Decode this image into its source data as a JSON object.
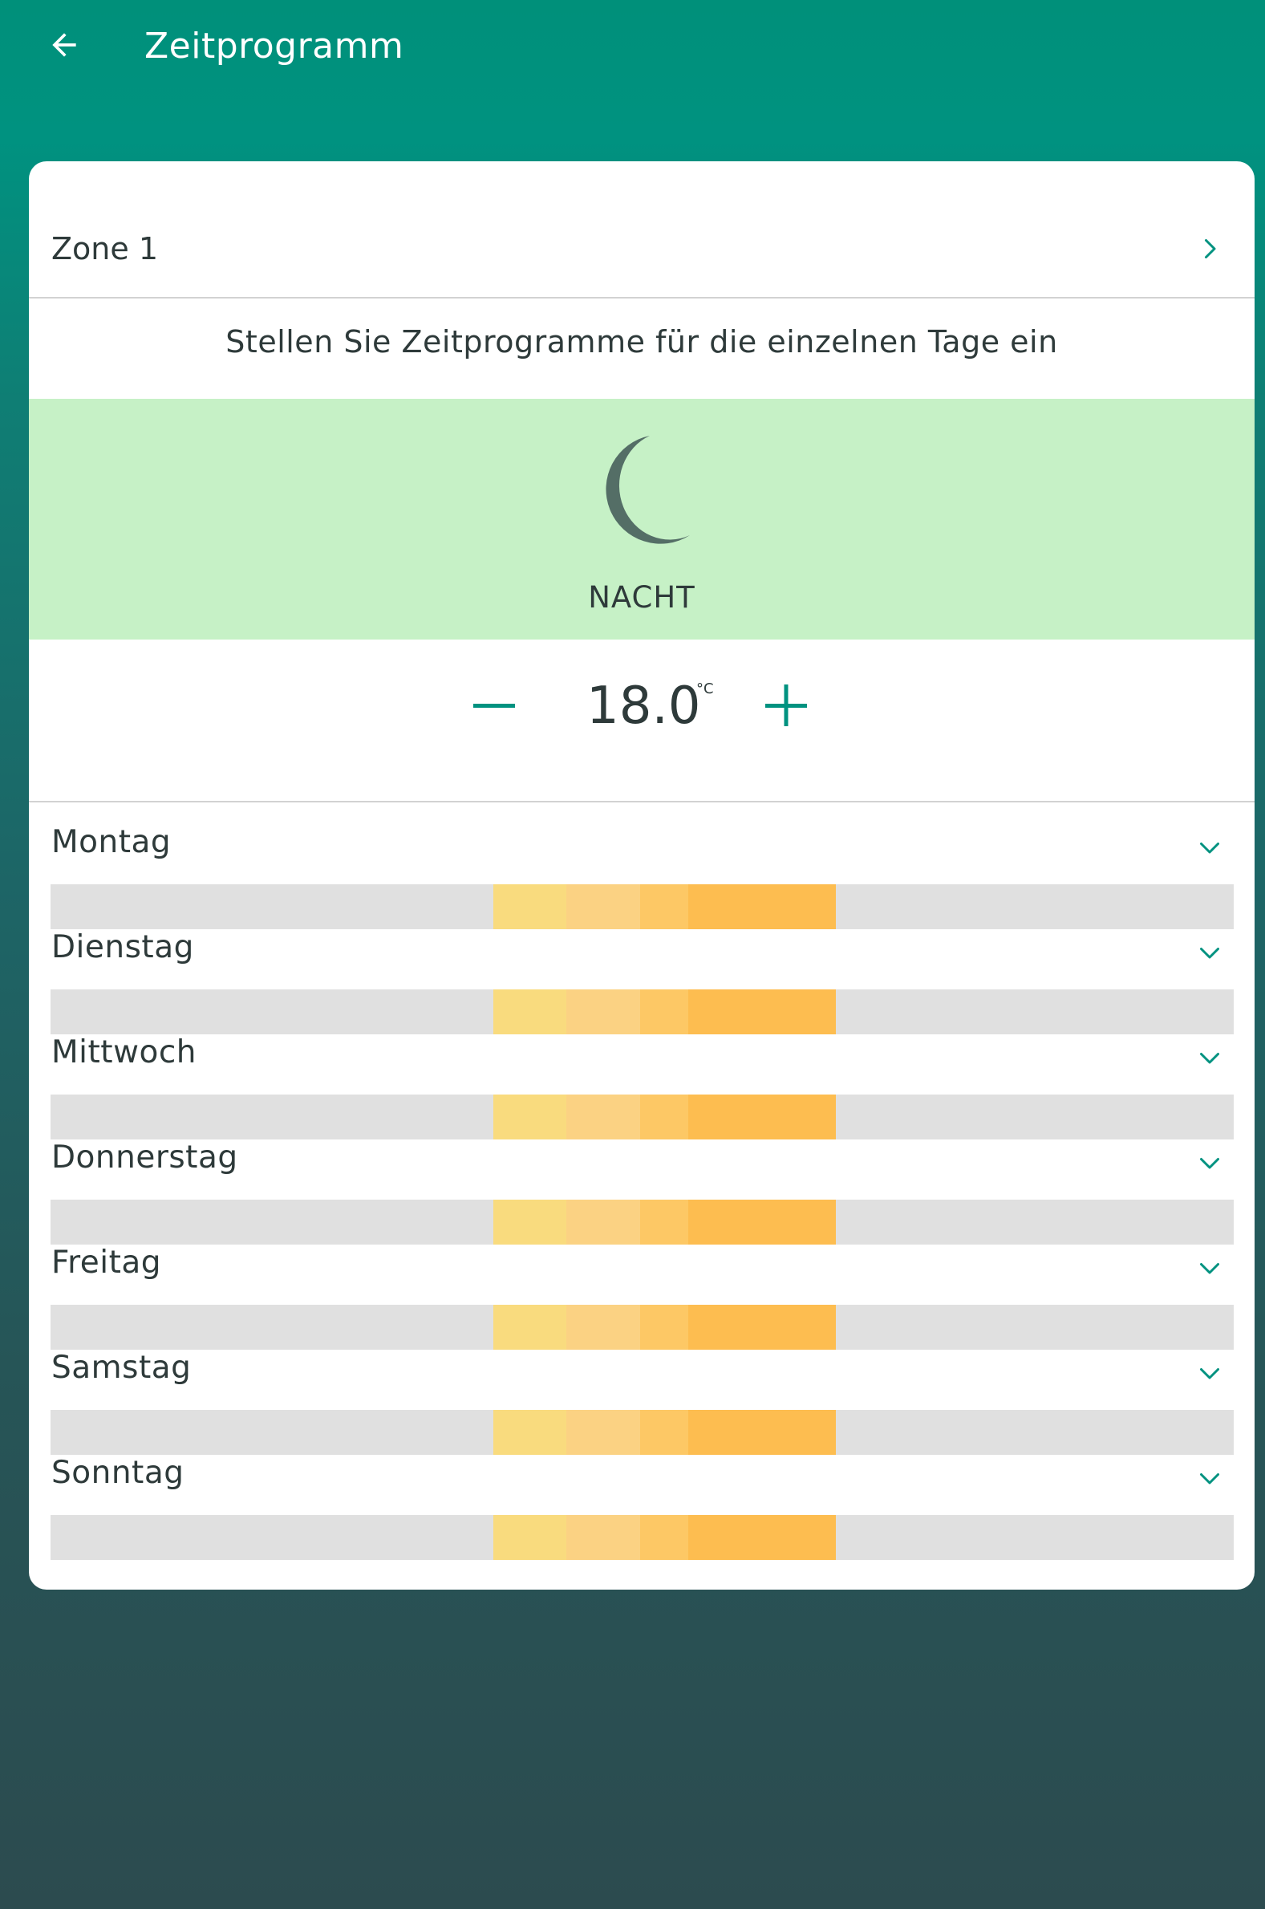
{
  "header": {
    "title": "Zeitprogramm",
    "back_icon": "arrow-left-icon"
  },
  "zone": {
    "label": "Zone 1"
  },
  "subtitle": "Stellen Sie Zeitprogramme für die einzelnen Tage ein",
  "mode": {
    "label": "NACHT",
    "icon": "moon-icon"
  },
  "temperature": {
    "value": "18.0",
    "unit": "°C"
  },
  "days": [
    {
      "label": "Montag"
    },
    {
      "label": "Dienstag"
    },
    {
      "label": "Mittwoch"
    },
    {
      "label": "Donnerstag"
    },
    {
      "label": "Freitag"
    },
    {
      "label": "Samstag"
    },
    {
      "label": "Sonntag"
    }
  ],
  "schedule_segments_fraction": [
    {
      "start": 0.374,
      "end": 0.436,
      "color": "#f9db7e"
    },
    {
      "start": 0.436,
      "end": 0.498,
      "color": "#fbd283"
    },
    {
      "start": 0.498,
      "end": 0.539,
      "color": "#fdc865"
    },
    {
      "start": 0.539,
      "end": 0.664,
      "color": "#fdbd50"
    }
  ],
  "colors": {
    "accent": "#009280",
    "mode_background": "#c6f1c6",
    "text": "#2e3a3a",
    "bar_background": "#e0e0e0"
  }
}
